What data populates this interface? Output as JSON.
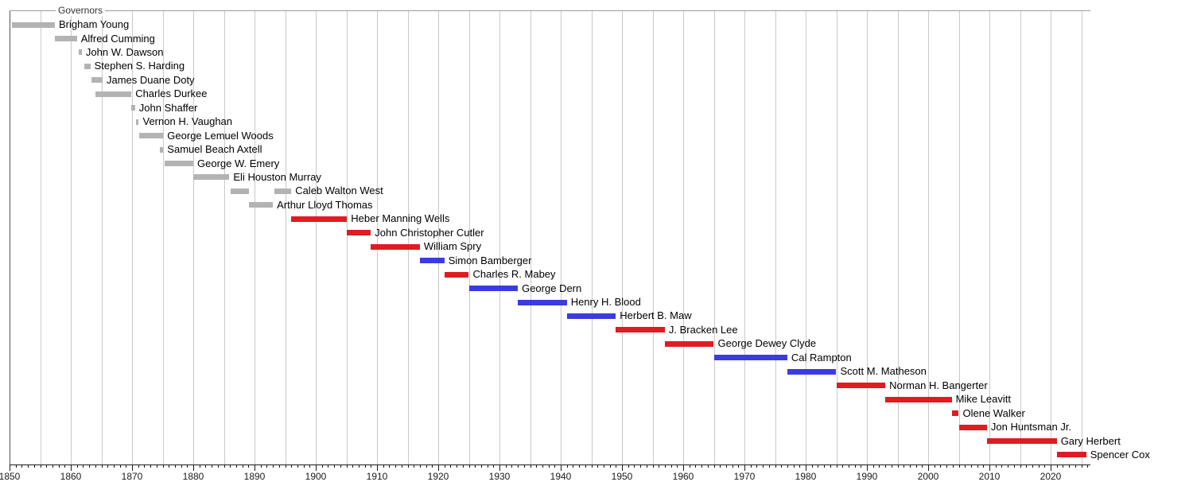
{
  "chart_data": {
    "type": "bar",
    "subtype": "timeline-gantt",
    "title": "Governors",
    "xlabel": "",
    "ylabel": "",
    "x_axis": {
      "min": 1850,
      "max": 2026.5,
      "gridline_interval": 5,
      "gridline_first": 1850,
      "gridline_last": 2025,
      "minor_tick_interval": 1,
      "major_tick_interval": 10,
      "tick_labels": [
        1850,
        1860,
        1870,
        1880,
        1890,
        1900,
        1910,
        1920,
        1930,
        1940,
        1950,
        1960,
        1970,
        1980,
        1990,
        2000,
        2010,
        2020
      ]
    },
    "legend": "none",
    "grid": "vertical-on",
    "colors": {
      "Territorial": "#b3b3b3",
      "Republican": "#e11b22",
      "Democratic": "#3b3be0"
    },
    "governors": [
      {
        "name": "Brigham Young",
        "party": "Territorial",
        "terms": [
          [
            1850.4,
            1857.4
          ]
        ]
      },
      {
        "name": "Alfred Cumming",
        "party": "Territorial",
        "terms": [
          [
            1857.4,
            1861.0
          ]
        ]
      },
      {
        "name": "John W. Dawson",
        "party": "Territorial",
        "terms": [
          [
            1861.3,
            1861.8
          ]
        ]
      },
      {
        "name": "Stephen S. Harding",
        "party": "Territorial",
        "terms": [
          [
            1862.2,
            1863.2
          ]
        ]
      },
      {
        "name": "James Duane Doty",
        "party": "Territorial",
        "terms": [
          [
            1863.4,
            1865.2
          ]
        ]
      },
      {
        "name": "Charles Durkee",
        "party": "Territorial",
        "terms": [
          [
            1864.0,
            1869.9
          ]
        ]
      },
      {
        "name": "John Shaffer",
        "party": "Territorial",
        "terms": [
          [
            1869.9,
            1870.5
          ]
        ]
      },
      {
        "name": "Vernon H. Vaughan",
        "party": "Territorial",
        "terms": [
          [
            1870.6,
            1871.1
          ]
        ]
      },
      {
        "name": "George Lemuel Woods",
        "party": "Territorial",
        "terms": [
          [
            1871.1,
            1875.1
          ]
        ]
      },
      {
        "name": "Samuel Beach Axtell",
        "party": "Territorial",
        "terms": [
          [
            1874.6,
            1875.1
          ]
        ]
      },
      {
        "name": "George W. Emery",
        "party": "Territorial",
        "terms": [
          [
            1875.3,
            1880.0
          ]
        ]
      },
      {
        "name": "Eli Houston Murray",
        "party": "Territorial",
        "terms": [
          [
            1880.0,
            1885.9
          ]
        ]
      },
      {
        "name": "Caleb Walton West",
        "party": "Territorial",
        "terms": [
          [
            1886.1,
            1889.1
          ],
          [
            1893.2,
            1896.0
          ]
        ]
      },
      {
        "name": "Arthur Lloyd Thomas",
        "party": "Territorial",
        "terms": [
          [
            1889.1,
            1893.0
          ]
        ]
      },
      {
        "name": "Heber Manning Wells",
        "party": "Republican",
        "terms": [
          [
            1896.0,
            1905.1
          ]
        ]
      },
      {
        "name": "John Christopher Cutler",
        "party": "Republican",
        "terms": [
          [
            1905.1,
            1909.0
          ]
        ]
      },
      {
        "name": "William Spry",
        "party": "Republican",
        "terms": [
          [
            1909.0,
            1917.0
          ]
        ]
      },
      {
        "name": "Simon Bamberger",
        "party": "Democratic",
        "terms": [
          [
            1917.0,
            1921.0
          ]
        ]
      },
      {
        "name": "Charles R. Mabey",
        "party": "Republican",
        "terms": [
          [
            1921.0,
            1925.0
          ]
        ]
      },
      {
        "name": "George Dern",
        "party": "Democratic",
        "terms": [
          [
            1925.0,
            1933.0
          ]
        ]
      },
      {
        "name": "Henry H. Blood",
        "party": "Democratic",
        "terms": [
          [
            1933.0,
            1941.0
          ]
        ]
      },
      {
        "name": "Herbert B. Maw",
        "party": "Democratic",
        "terms": [
          [
            1941.0,
            1949.0
          ]
        ]
      },
      {
        "name": "J. Bracken Lee",
        "party": "Republican",
        "terms": [
          [
            1949.0,
            1957.0
          ]
        ]
      },
      {
        "name": "George Dewey Clyde",
        "party": "Republican",
        "terms": [
          [
            1957.0,
            1965.0
          ]
        ]
      },
      {
        "name": "Cal Rampton",
        "party": "Democratic",
        "terms": [
          [
            1965.0,
            1977.0
          ]
        ]
      },
      {
        "name": "Scott M. Matheson",
        "party": "Democratic",
        "terms": [
          [
            1977.0,
            1985.0
          ]
        ]
      },
      {
        "name": "Norman H. Bangerter",
        "party": "Republican",
        "terms": [
          [
            1985.0,
            1993.0
          ]
        ]
      },
      {
        "name": "Mike Leavitt",
        "party": "Republican",
        "terms": [
          [
            1993.0,
            2003.85
          ]
        ]
      },
      {
        "name": "Olene Walker",
        "party": "Republican",
        "terms": [
          [
            2003.85,
            2005.0
          ]
        ]
      },
      {
        "name": "Jon Huntsman Jr.",
        "party": "Republican",
        "terms": [
          [
            2005.0,
            2009.6
          ]
        ]
      },
      {
        "name": "Gary Herbert",
        "party": "Republican",
        "terms": [
          [
            2009.6,
            2021.0
          ]
        ]
      },
      {
        "name": "Spencer Cox",
        "party": "Republican",
        "terms": [
          [
            2021.0,
            2025.8
          ]
        ]
      }
    ]
  }
}
